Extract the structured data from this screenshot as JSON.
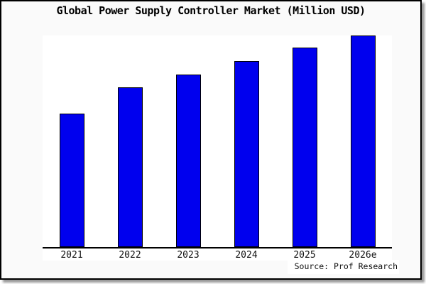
{
  "window": {
    "background_color": "#fafafa",
    "frame_border_color": "#000000",
    "plot_background_color": "#ffffff"
  },
  "title": "Global Power Supply Controller Market (Million USD)",
  "source": "Source: Prof Research",
  "chart_data": {
    "type": "bar",
    "title": "Global Power Supply Controller Market (Million USD)",
    "categories": [
      "2021",
      "2022",
      "2023",
      "2024",
      "2025",
      "2026e"
    ],
    "values": [
      63,
      75.5,
      81.7,
      88,
      94.2,
      100
    ],
    "value_note": "no numeric y-axis shown; values estimated relative to 2026e = 100",
    "xlabel": "",
    "ylabel": "",
    "ylim": [
      0,
      100
    ],
    "grid": false,
    "legend": false,
    "bar_color": "#0000ee",
    "bar_border_color": "#000000",
    "annotation": "Source: Prof Research"
  }
}
